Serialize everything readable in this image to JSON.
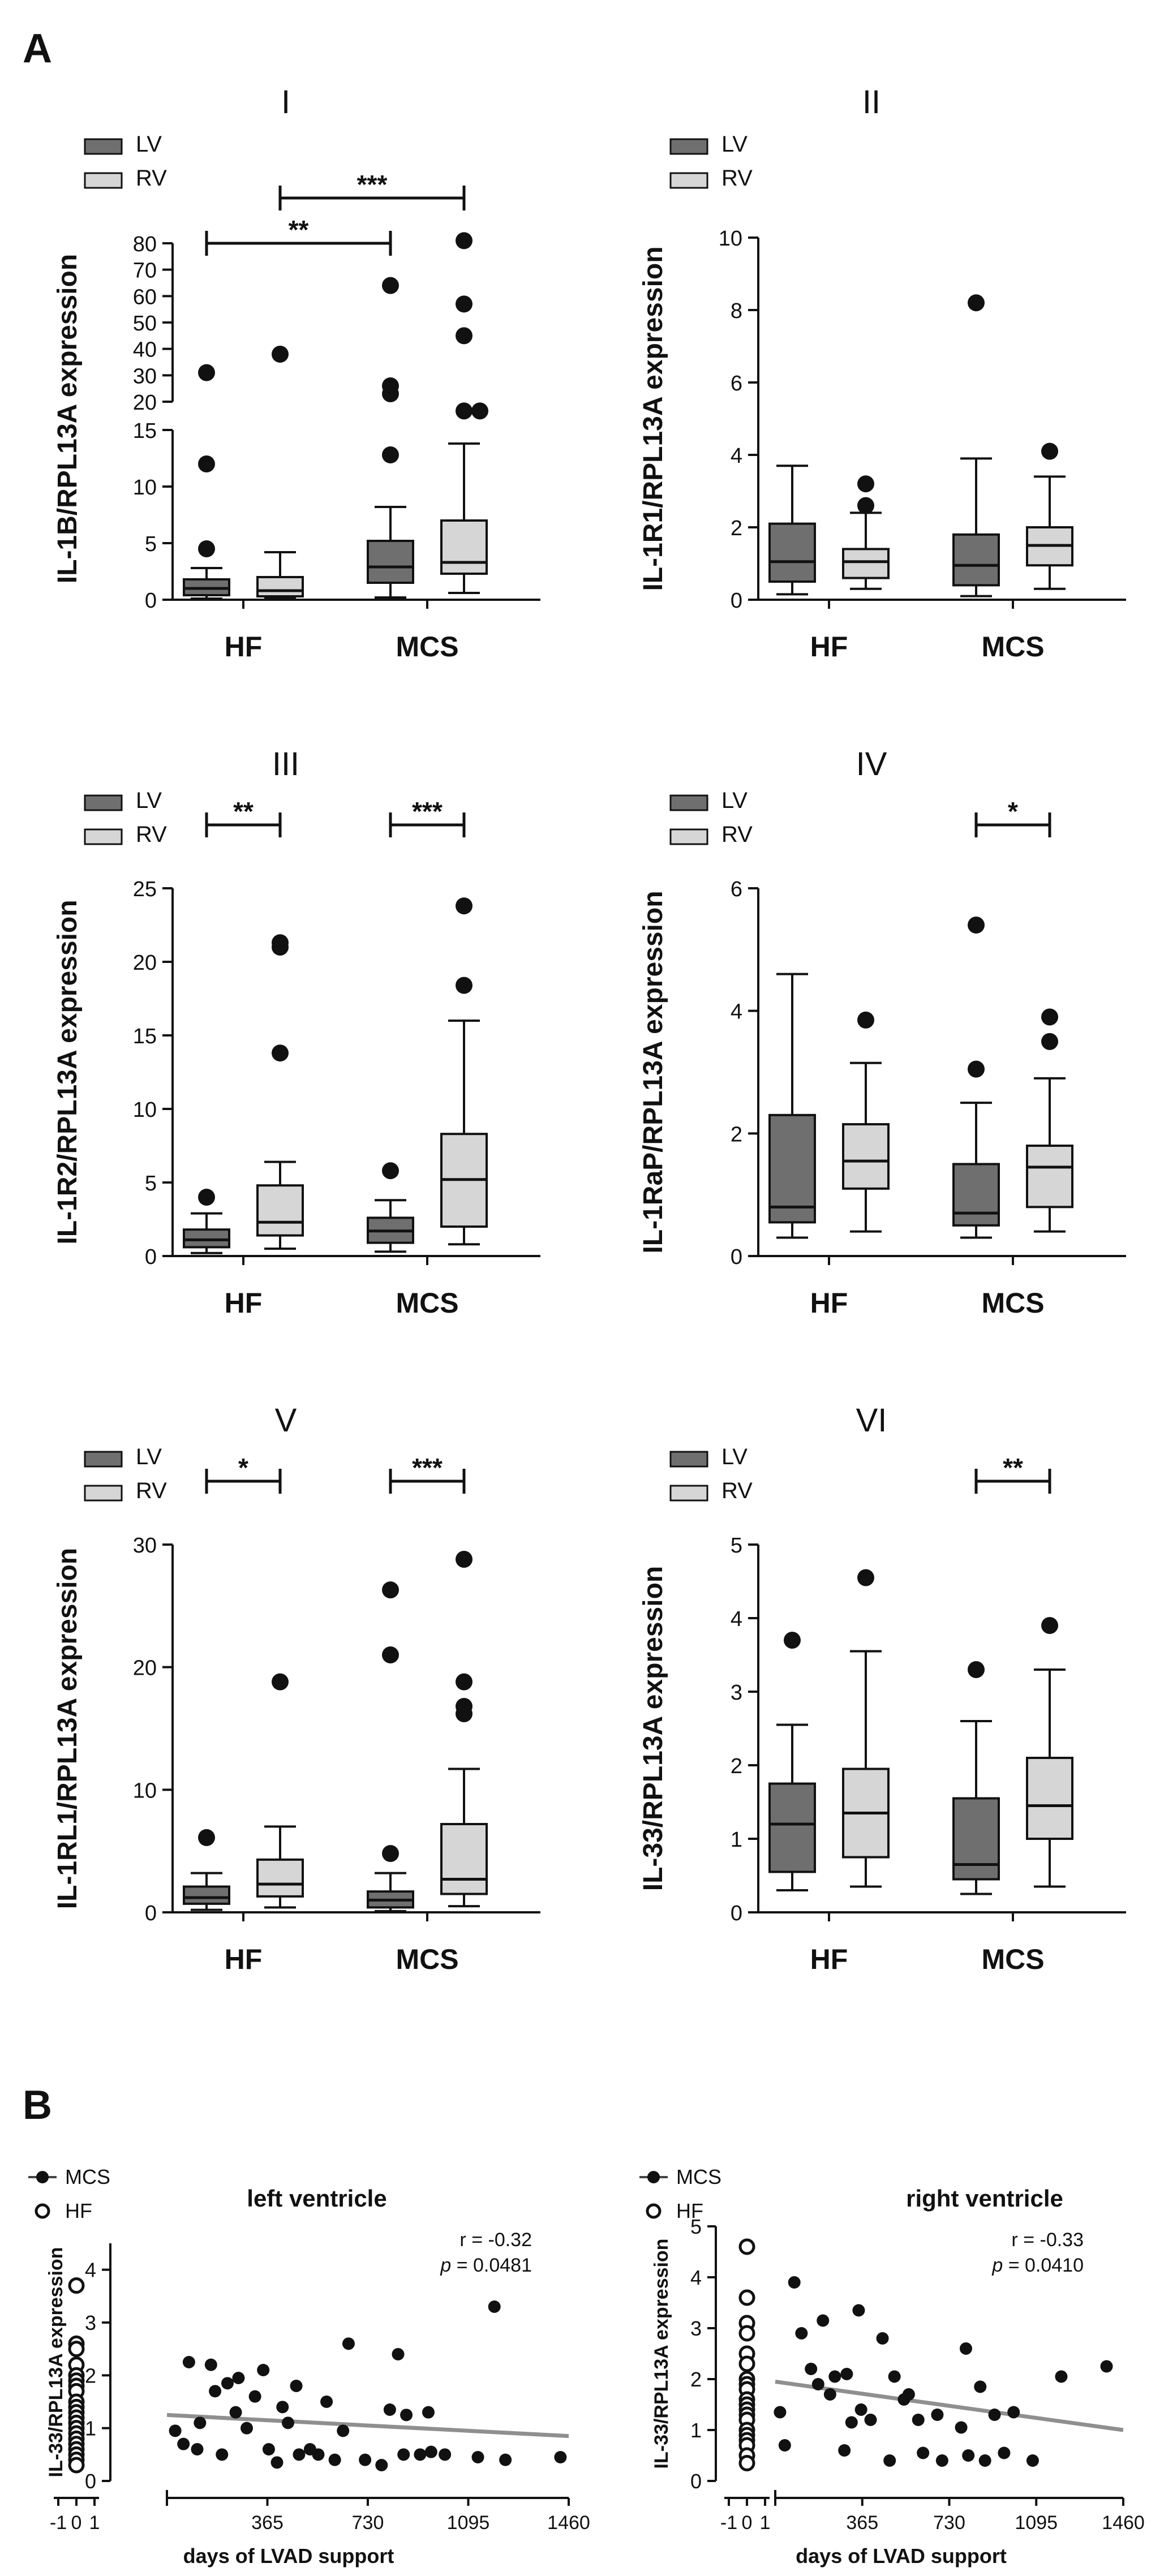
{
  "figure": {
    "section_a_label": "A",
    "section_b_label": "B"
  },
  "colors": {
    "lv": "#6f6f6f",
    "rv": "#d6d6d6",
    "mark": "#111111",
    "fit": "#8f8f8f"
  },
  "chart_data": [
    {
      "type": "box",
      "panel": "I",
      "ylabel": "IL-1B/RPL13A expression",
      "categories": [
        "HF",
        "MCS"
      ],
      "legend": [
        "LV",
        "RV"
      ],
      "axis_break": {
        "lower": [
          0,
          15
        ],
        "upper": [
          20,
          80
        ]
      },
      "ticks_lower": [
        0,
        5,
        10,
        15
      ],
      "ticks_upper": [
        20,
        30,
        40,
        50,
        60,
        70,
        80
      ],
      "boxes": [
        {
          "group": "HF",
          "series": "LV",
          "whisker_low": 0.1,
          "q1": 0.4,
          "median": 1.0,
          "q3": 1.8,
          "whisker_high": 2.8,
          "outliers": [
            4.5,
            12.0,
            31.0
          ]
        },
        {
          "group": "HF",
          "series": "RV",
          "whisker_low": 0.1,
          "q1": 0.3,
          "median": 0.8,
          "q3": 2.0,
          "whisker_high": 4.2,
          "outliers": [
            38.0
          ]
        },
        {
          "group": "MCS",
          "series": "LV",
          "whisker_low": 0.2,
          "q1": 1.5,
          "median": 2.9,
          "q3": 5.2,
          "whisker_high": 8.2,
          "outliers": [
            12.8,
            23.0,
            26.0,
            64.0
          ]
        },
        {
          "group": "MCS",
          "series": "RV",
          "whisker_low": 0.6,
          "q1": 2.3,
          "median": 3.3,
          "q3": 7.0,
          "whisker_high": 13.8,
          "outliers": [
            16.5,
            16.5,
            45.0,
            57.0,
            81.0
          ]
        }
      ],
      "significance": [
        {
          "from": "HF-LV",
          "to": "MCS-LV",
          "label": "**"
        },
        {
          "from": "HF-RV",
          "to": "MCS-RV",
          "label": "***"
        }
      ]
    },
    {
      "type": "box",
      "panel": "II",
      "ylabel": "IL-1R1/RPL13A expression",
      "categories": [
        "HF",
        "MCS"
      ],
      "legend": [
        "LV",
        "RV"
      ],
      "ylim": [
        0,
        10
      ],
      "ticks": [
        0,
        2,
        4,
        6,
        8,
        10
      ],
      "boxes": [
        {
          "group": "HF",
          "series": "LV",
          "whisker_low": 0.15,
          "q1": 0.5,
          "median": 1.05,
          "q3": 2.1,
          "whisker_high": 3.7,
          "outliers": []
        },
        {
          "group": "HF",
          "series": "RV",
          "whisker_low": 0.3,
          "q1": 0.6,
          "median": 1.05,
          "q3": 1.4,
          "whisker_high": 2.4,
          "outliers": [
            2.6,
            3.2
          ]
        },
        {
          "group": "MCS",
          "series": "LV",
          "whisker_low": 0.1,
          "q1": 0.4,
          "median": 0.95,
          "q3": 1.8,
          "whisker_high": 3.9,
          "outliers": [
            8.2
          ]
        },
        {
          "group": "MCS",
          "series": "RV",
          "whisker_low": 0.3,
          "q1": 0.95,
          "median": 1.5,
          "q3": 2.0,
          "whisker_high": 3.4,
          "outliers": [
            4.1
          ]
        }
      ],
      "significance": []
    },
    {
      "type": "box",
      "panel": "III",
      "ylabel": "IL-1R2/RPL13A expression",
      "categories": [
        "HF",
        "MCS"
      ],
      "legend": [
        "LV",
        "RV"
      ],
      "ylim": [
        0,
        25
      ],
      "ticks": [
        0,
        5,
        10,
        15,
        20,
        25
      ],
      "boxes": [
        {
          "group": "HF",
          "series": "LV",
          "whisker_low": 0.2,
          "q1": 0.6,
          "median": 1.1,
          "q3": 1.8,
          "whisker_high": 2.9,
          "outliers": [
            4.0
          ]
        },
        {
          "group": "HF",
          "series": "RV",
          "whisker_low": 0.5,
          "q1": 1.4,
          "median": 2.3,
          "q3": 4.8,
          "whisker_high": 6.4,
          "outliers": [
            13.8,
            21.0,
            21.3
          ]
        },
        {
          "group": "MCS",
          "series": "LV",
          "whisker_low": 0.3,
          "q1": 0.9,
          "median": 1.7,
          "q3": 2.6,
          "whisker_high": 3.8,
          "outliers": [
            5.8
          ]
        },
        {
          "group": "MCS",
          "series": "RV",
          "whisker_low": 0.8,
          "q1": 2.0,
          "median": 5.2,
          "q3": 8.3,
          "whisker_high": 16.0,
          "outliers": [
            18.4,
            23.8
          ]
        }
      ],
      "significance": [
        {
          "from": "HF-LV",
          "to": "HF-RV",
          "label": "**"
        },
        {
          "from": "MCS-LV",
          "to": "MCS-RV",
          "label": "***"
        }
      ]
    },
    {
      "type": "box",
      "panel": "IV",
      "ylabel": "IL-1RaP/RPL13A expression",
      "categories": [
        "HF",
        "MCS"
      ],
      "legend": [
        "LV",
        "RV"
      ],
      "ylim": [
        0,
        6
      ],
      "ticks": [
        0,
        2,
        4,
        6
      ],
      "boxes": [
        {
          "group": "HF",
          "series": "LV",
          "whisker_low": 0.3,
          "q1": 0.55,
          "median": 0.8,
          "q3": 2.3,
          "whisker_high": 4.6,
          "outliers": []
        },
        {
          "group": "HF",
          "series": "RV",
          "whisker_low": 0.4,
          "q1": 1.1,
          "median": 1.55,
          "q3": 2.15,
          "whisker_high": 3.15,
          "outliers": [
            3.85
          ]
        },
        {
          "group": "MCS",
          "series": "LV",
          "whisker_low": 0.3,
          "q1": 0.5,
          "median": 0.7,
          "q3": 1.5,
          "whisker_high": 2.5,
          "outliers": [
            3.05,
            5.4
          ]
        },
        {
          "group": "MCS",
          "series": "RV",
          "whisker_low": 0.4,
          "q1": 0.8,
          "median": 1.45,
          "q3": 1.8,
          "whisker_high": 2.9,
          "outliers": [
            3.5,
            3.9
          ]
        }
      ],
      "significance": [
        {
          "from": "MCS-LV",
          "to": "MCS-RV",
          "label": "*"
        }
      ]
    },
    {
      "type": "box",
      "panel": "V",
      "ylabel": "IL-1RL1/RPL13A expression",
      "categories": [
        "HF",
        "MCS"
      ],
      "legend": [
        "LV",
        "RV"
      ],
      "ylim": [
        0,
        30
      ],
      "ticks": [
        0,
        10,
        20,
        30
      ],
      "boxes": [
        {
          "group": "HF",
          "series": "LV",
          "whisker_low": 0.2,
          "q1": 0.7,
          "median": 1.2,
          "q3": 2.1,
          "whisker_high": 3.2,
          "outliers": [
            6.1
          ]
        },
        {
          "group": "HF",
          "series": "RV",
          "whisker_low": 0.4,
          "q1": 1.3,
          "median": 2.3,
          "q3": 4.3,
          "whisker_high": 7.0,
          "outliers": [
            18.8
          ]
        },
        {
          "group": "MCS",
          "series": "LV",
          "whisker_low": 0.1,
          "q1": 0.4,
          "median": 1.0,
          "q3": 1.7,
          "whisker_high": 3.2,
          "outliers": [
            4.8,
            21.0,
            26.3
          ]
        },
        {
          "group": "MCS",
          "series": "RV",
          "whisker_low": 0.5,
          "q1": 1.5,
          "median": 2.7,
          "q3": 7.2,
          "whisker_high": 11.7,
          "outliers": [
            16.2,
            16.8,
            18.8,
            28.8
          ]
        }
      ],
      "significance": [
        {
          "from": "HF-LV",
          "to": "HF-RV",
          "label": "*"
        },
        {
          "from": "MCS-LV",
          "to": "MCS-RV",
          "label": "***"
        }
      ]
    },
    {
      "type": "box",
      "panel": "VI",
      "ylabel": "IL-33/RPL13A expression",
      "categories": [
        "HF",
        "MCS"
      ],
      "legend": [
        "LV",
        "RV"
      ],
      "ylim": [
        0,
        5
      ],
      "ticks": [
        0,
        1,
        2,
        3,
        4,
        5
      ],
      "boxes": [
        {
          "group": "HF",
          "series": "LV",
          "whisker_low": 0.3,
          "q1": 0.55,
          "median": 1.2,
          "q3": 1.75,
          "whisker_high": 2.55,
          "outliers": [
            3.7
          ]
        },
        {
          "group": "HF",
          "series": "RV",
          "whisker_low": 0.35,
          "q1": 0.75,
          "median": 1.35,
          "q3": 1.95,
          "whisker_high": 3.55,
          "outliers": [
            4.55
          ]
        },
        {
          "group": "MCS",
          "series": "LV",
          "whisker_low": 0.25,
          "q1": 0.45,
          "median": 0.65,
          "q3": 1.55,
          "whisker_high": 2.6,
          "outliers": [
            3.3
          ]
        },
        {
          "group": "MCS",
          "series": "RV",
          "whisker_low": 0.35,
          "q1": 1.0,
          "median": 1.45,
          "q3": 2.1,
          "whisker_high": 3.3,
          "outliers": [
            3.9
          ]
        }
      ],
      "significance": [
        {
          "from": "MCS-LV",
          "to": "MCS-RV",
          "label": "**"
        }
      ]
    },
    {
      "type": "scatter",
      "panel": "B-left",
      "title": "left ventricle",
      "xlabel": "days of LVAD support",
      "ylabel": "IL-33/RPL13A expression",
      "legend": [
        "MCS",
        "HF"
      ],
      "stats": {
        "r": "r = -0.32",
        "p_label": "p",
        "p_value": "= 0.0481"
      },
      "hf_xticks": [
        "-1",
        "0",
        "1"
      ],
      "xticks": [
        365,
        730,
        1095,
        1460
      ],
      "xlim": [
        0,
        1460
      ],
      "ylim": [
        0,
        4.5
      ],
      "yticks": [
        0,
        1,
        2,
        3,
        4
      ],
      "hf_values": [
        3.7,
        2.6,
        2.5,
        2.2,
        2.0,
        1.9,
        1.8,
        1.7,
        1.5,
        1.4,
        1.3,
        1.2,
        1.1,
        1.0,
        0.9,
        0.8,
        0.7,
        0.6,
        0.5,
        0.4,
        0.3
      ],
      "mcs_points": [
        [
          30,
          0.95
        ],
        [
          60,
          0.7
        ],
        [
          80,
          2.25
        ],
        [
          110,
          0.6
        ],
        [
          120,
          1.1
        ],
        [
          160,
          2.2
        ],
        [
          175,
          1.7
        ],
        [
          200,
          0.5
        ],
        [
          220,
          1.85
        ],
        [
          250,
          1.3
        ],
        [
          260,
          1.95
        ],
        [
          290,
          1.0
        ],
        [
          320,
          1.6
        ],
        [
          350,
          2.1
        ],
        [
          370,
          0.6
        ],
        [
          400,
          0.35
        ],
        [
          420,
          1.4
        ],
        [
          440,
          1.1
        ],
        [
          470,
          1.8
        ],
        [
          480,
          0.5
        ],
        [
          520,
          0.6
        ],
        [
          550,
          0.5
        ],
        [
          580,
          1.5
        ],
        [
          610,
          0.4
        ],
        [
          640,
          0.95
        ],
        [
          660,
          2.6
        ],
        [
          720,
          0.4
        ],
        [
          780,
          0.3
        ],
        [
          810,
          1.35
        ],
        [
          840,
          2.4
        ],
        [
          860,
          0.5
        ],
        [
          870,
          1.25
        ],
        [
          920,
          0.5
        ],
        [
          950,
          1.3
        ],
        [
          960,
          0.55
        ],
        [
          1010,
          0.5
        ],
        [
          1130,
          0.45
        ],
        [
          1190,
          3.3
        ],
        [
          1230,
          0.4
        ],
        [
          1430,
          0.45
        ]
      ],
      "fit": {
        "x": [
          0,
          1460
        ],
        "y": [
          1.25,
          0.85
        ]
      }
    },
    {
      "type": "scatter",
      "panel": "B-right",
      "title": "right ventricle",
      "xlabel": "days of LVAD support",
      "ylabel": "IL-33/RPL13A expression",
      "legend": [
        "MCS",
        "HF"
      ],
      "stats": {
        "r": "r = -0.33",
        "p_label": "p",
        "p_value": "= 0.0410"
      },
      "hf_xticks": [
        "-1",
        "0",
        "1"
      ],
      "xticks": [
        365,
        730,
        1095,
        1460
      ],
      "xlim": [
        0,
        1460
      ],
      "ylim": [
        0,
        5
      ],
      "yticks": [
        0,
        1,
        2,
        3,
        4,
        5
      ],
      "hf_values": [
        4.6,
        3.6,
        3.1,
        2.9,
        2.5,
        2.3,
        2.0,
        1.9,
        1.8,
        1.6,
        1.5,
        1.4,
        1.3,
        1.2,
        1.0,
        0.9,
        0.8,
        0.7,
        0.5,
        0.35
      ],
      "mcs_points": [
        [
          20,
          1.35
        ],
        [
          40,
          0.7
        ],
        [
          80,
          3.9
        ],
        [
          110,
          2.9
        ],
        [
          150,
          2.2
        ],
        [
          180,
          1.9
        ],
        [
          200,
          3.15
        ],
        [
          230,
          1.7
        ],
        [
          250,
          2.05
        ],
        [
          290,
          0.6
        ],
        [
          300,
          2.1
        ],
        [
          320,
          1.15
        ],
        [
          350,
          3.35
        ],
        [
          360,
          1.4
        ],
        [
          400,
          1.2
        ],
        [
          450,
          2.8
        ],
        [
          480,
          0.4
        ],
        [
          500,
          2.05
        ],
        [
          540,
          1.6
        ],
        [
          560,
          1.7
        ],
        [
          600,
          1.2
        ],
        [
          620,
          0.55
        ],
        [
          680,
          1.3
        ],
        [
          700,
          0.4
        ],
        [
          780,
          1.05
        ],
        [
          800,
          2.6
        ],
        [
          810,
          0.5
        ],
        [
          860,
          1.85
        ],
        [
          880,
          0.4
        ],
        [
          920,
          1.3
        ],
        [
          960,
          0.55
        ],
        [
          1000,
          1.35
        ],
        [
          1080,
          0.4
        ],
        [
          1200,
          2.05
        ],
        [
          1390,
          2.25
        ]
      ],
      "fit": {
        "x": [
          0,
          1460
        ],
        "y": [
          1.95,
          1.0
        ]
      }
    }
  ]
}
